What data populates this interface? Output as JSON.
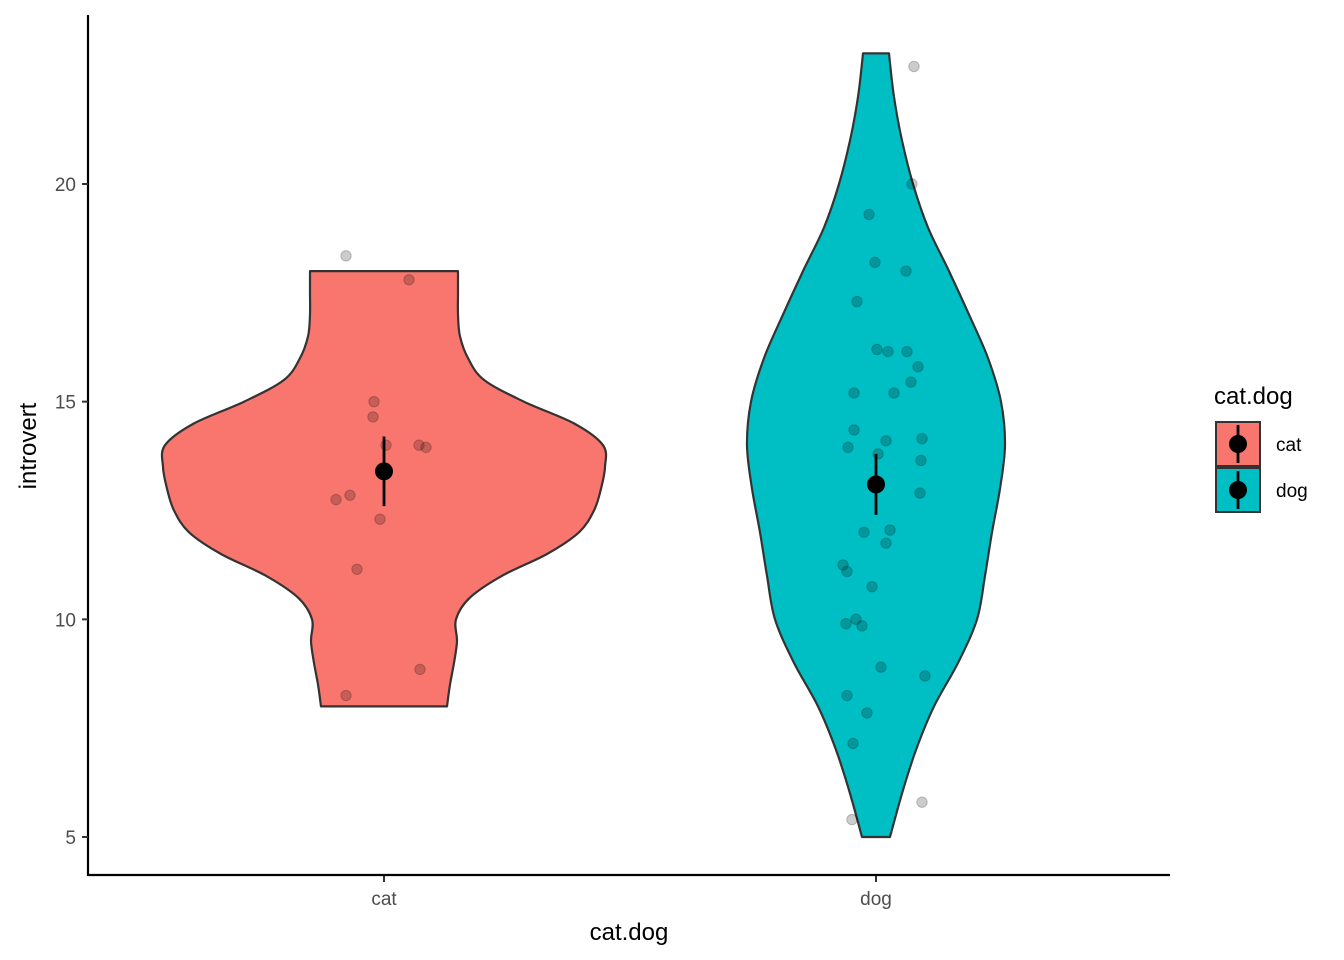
{
  "chart_data": {
    "type": "violin",
    "title": "",
    "xlabel": "cat.dog",
    "ylabel": "introvert",
    "categories": [
      "cat",
      "dog"
    ],
    "ylim": [
      4.15,
      24
    ],
    "yticks": [
      5,
      10,
      15,
      20
    ],
    "grid": false,
    "legend": {
      "title": "cat.dog",
      "placement": "right",
      "entries": [
        {
          "label": "cat",
          "color": "#F8766D"
        },
        {
          "label": "dog",
          "color": "#00BFC4"
        }
      ]
    },
    "series": [
      {
        "category": "cat",
        "color": "#F8766D",
        "range": [
          8,
          18
        ],
        "mean": 13.4,
        "ci": [
          12.6,
          14.2
        ],
        "density_max_halfwidth": 221,
        "density": [
          [
            8.0,
            63
          ],
          [
            8.5,
            66
          ],
          [
            9.0,
            70
          ],
          [
            9.5,
            73
          ],
          [
            10.0,
            72
          ],
          [
            10.5,
            86
          ],
          [
            11.0,
            118
          ],
          [
            11.5,
            163
          ],
          [
            12.0,
            195
          ],
          [
            12.5,
            210
          ],
          [
            13.0,
            217
          ],
          [
            13.5,
            221
          ],
          [
            14.0,
            219
          ],
          [
            14.5,
            190
          ],
          [
            15.0,
            140
          ],
          [
            15.5,
            100
          ],
          [
            16.0,
            84
          ],
          [
            16.5,
            76
          ],
          [
            17.0,
            74
          ],
          [
            17.5,
            74
          ],
          [
            18.0,
            74
          ]
        ],
        "points": [
          [
            -38,
            18.35
          ],
          [
            25,
            17.8
          ],
          [
            -10,
            15.0
          ],
          [
            -11,
            14.65
          ],
          [
            2,
            14.0
          ],
          [
            35,
            14.0
          ],
          [
            42,
            13.95
          ],
          [
            -34,
            12.85
          ],
          [
            -48,
            12.75
          ],
          [
            -4,
            12.3
          ],
          [
            -27,
            11.15
          ],
          [
            36,
            8.85
          ],
          [
            -38,
            8.25
          ]
        ]
      },
      {
        "category": "dog",
        "color": "#00BFC4",
        "range": [
          5,
          23
        ],
        "mean": 13.1,
        "ci": [
          12.4,
          13.8
        ],
        "density_max_halfwidth": 129,
        "density": [
          [
            5.0,
            14
          ],
          [
            6.0,
            26
          ],
          [
            7.0,
            40
          ],
          [
            8.0,
            58
          ],
          [
            9.0,
            82
          ],
          [
            10.0,
            101
          ],
          [
            11.0,
            109
          ],
          [
            12.0,
            116
          ],
          [
            13.0,
            124
          ],
          [
            14.0,
            129
          ],
          [
            15.0,
            125
          ],
          [
            16.0,
            112
          ],
          [
            17.0,
            93
          ],
          [
            18.0,
            73
          ],
          [
            19.0,
            52
          ],
          [
            20.0,
            37
          ],
          [
            21.0,
            26
          ],
          [
            22.0,
            18
          ],
          [
            23.0,
            13
          ]
        ],
        "points": [
          [
            38,
            22.7
          ],
          [
            36,
            20.0
          ],
          [
            -7,
            19.3
          ],
          [
            -1,
            18.2
          ],
          [
            30,
            18.0
          ],
          [
            -19,
            17.3
          ],
          [
            1,
            16.2
          ],
          [
            12,
            16.15
          ],
          [
            31,
            16.15
          ],
          [
            42,
            15.8
          ],
          [
            35,
            15.45
          ],
          [
            -22,
            15.2
          ],
          [
            18,
            15.2
          ],
          [
            -22,
            14.35
          ],
          [
            10,
            14.1
          ],
          [
            46,
            14.15
          ],
          [
            -28,
            13.95
          ],
          [
            2,
            13.8
          ],
          [
            45,
            13.65
          ],
          [
            44,
            12.9
          ],
          [
            -12,
            12.0
          ],
          [
            14,
            12.05
          ],
          [
            10,
            11.75
          ],
          [
            -33,
            11.25
          ],
          [
            -29,
            11.1
          ],
          [
            -4,
            10.75
          ],
          [
            -20,
            10.0
          ],
          [
            -30,
            9.9
          ],
          [
            -14,
            9.85
          ],
          [
            5,
            8.9
          ],
          [
            49,
            8.7
          ],
          [
            -29,
            8.25
          ],
          [
            -9,
            7.85
          ],
          [
            -23,
            7.15
          ],
          [
            46,
            5.8
          ],
          [
            -24,
            5.4
          ]
        ]
      }
    ]
  }
}
